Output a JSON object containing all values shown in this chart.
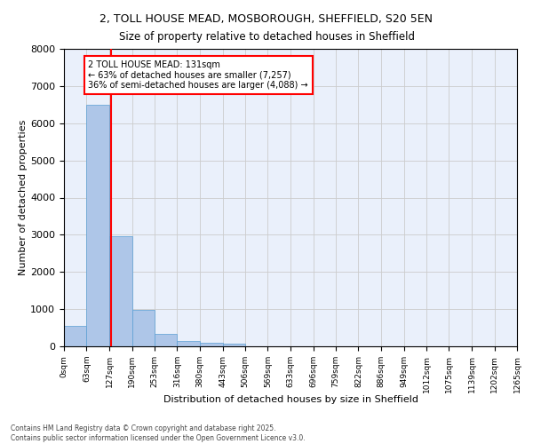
{
  "title_line1": "2, TOLL HOUSE MEAD, MOSBOROUGH, SHEFFIELD, S20 5EN",
  "title_line2": "Size of property relative to detached houses in Sheffield",
  "xlabel": "Distribution of detached houses by size in Sheffield",
  "ylabel": "Number of detached properties",
  "bar_values": [
    550,
    6500,
    2970,
    980,
    340,
    150,
    100,
    60,
    0,
    0,
    0,
    0,
    0,
    0,
    0,
    0,
    0,
    0,
    0,
    0
  ],
  "bin_edges": [
    0,
    63,
    127,
    190,
    253,
    316,
    380,
    443,
    506,
    569,
    633,
    696,
    759,
    822,
    886,
    949,
    1012,
    1075,
    1139,
    1202,
    1265
  ],
  "tick_labels": [
    "0sqm",
    "63sqm",
    "127sqm",
    "190sqm",
    "253sqm",
    "316sqm",
    "380sqm",
    "443sqm",
    "506sqm",
    "569sqm",
    "633sqm",
    "696sqm",
    "759sqm",
    "822sqm",
    "886sqm",
    "949sqm",
    "1012sqm",
    "1075sqm",
    "1139sqm",
    "1202sqm",
    "1265sqm"
  ],
  "bar_color": "#aec6e8",
  "bar_edge_color": "#5a9fd4",
  "grid_color": "#cccccc",
  "bg_color": "#eaf0fb",
  "property_line_x": 131,
  "property_line_color": "red",
  "annotation_title": "2 TOLL HOUSE MEAD: 131sqm",
  "annotation_line1": "← 63% of detached houses are smaller (7,257)",
  "annotation_line2": "36% of semi-detached houses are larger (4,088) →",
  "annotation_box_color": "red",
  "ylim": [
    0,
    8000
  ],
  "yticks": [
    0,
    1000,
    2000,
    3000,
    4000,
    5000,
    6000,
    7000,
    8000
  ],
  "footer_line1": "Contains HM Land Registry data © Crown copyright and database right 2025.",
  "footer_line2": "Contains public sector information licensed under the Open Government Licence v3.0."
}
